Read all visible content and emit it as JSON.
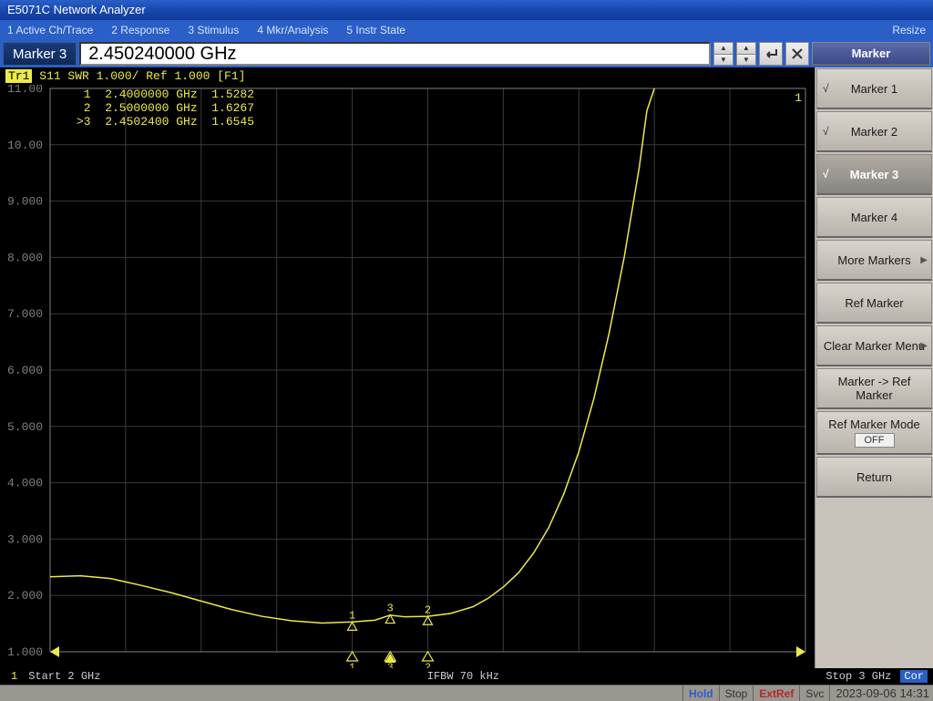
{
  "title": "E5071C Network Analyzer",
  "menu": {
    "items": [
      "1 Active Ch/Trace",
      "2 Response",
      "3 Stimulus",
      "4 Mkr/Analysis",
      "5 Instr State"
    ],
    "resize": "Resize"
  },
  "marker_bar": {
    "label": "Marker 3",
    "value": "2.450240000 GHz"
  },
  "plot": {
    "trace_label": "Tr1",
    "header": "S11 SWR 1.000/ Ref 1.000 [F1]",
    "ylim": [
      1.0,
      11.0
    ],
    "ytick_step": 1.0,
    "ytick_labels": [
      "11.00",
      "10.00",
      "9.000",
      "8.000",
      "7.000",
      "6.000",
      "5.000",
      "4.000",
      "3.000",
      "2.000",
      "1.000"
    ],
    "xlim": [
      2.0,
      3.0
    ],
    "grid_color": "#3a3a3a",
    "axis_color": "#808080",
    "label_color": "#808080",
    "trace_color": "#ecea4a",
    "background_color": "#000000",
    "marker_readout": [
      " 1  2.4000000 GHz  1.5282",
      " 2  2.5000000 GHz  1.6267",
      ">3  2.4502400 GHz  1.6545"
    ],
    "markers": [
      {
        "n": 1,
        "x": 2.4,
        "y": 1.5282
      },
      {
        "n": 2,
        "x": 2.5,
        "y": 1.6267
      },
      {
        "n": 3,
        "x": 2.45024,
        "y": 1.6545
      }
    ],
    "trace_points": [
      [
        2.0,
        2.33
      ],
      [
        2.04,
        2.35
      ],
      [
        2.08,
        2.3
      ],
      [
        2.12,
        2.18
      ],
      [
        2.16,
        2.05
      ],
      [
        2.2,
        1.9
      ],
      [
        2.24,
        1.75
      ],
      [
        2.28,
        1.63
      ],
      [
        2.32,
        1.55
      ],
      [
        2.36,
        1.51
      ],
      [
        2.4,
        1.53
      ],
      [
        2.43,
        1.56
      ],
      [
        2.45,
        1.65
      ],
      [
        2.47,
        1.62
      ],
      [
        2.5,
        1.63
      ],
      [
        2.53,
        1.68
      ],
      [
        2.56,
        1.8
      ],
      [
        2.58,
        1.95
      ],
      [
        2.6,
        2.15
      ],
      [
        2.62,
        2.4
      ],
      [
        2.64,
        2.75
      ],
      [
        2.66,
        3.2
      ],
      [
        2.68,
        3.8
      ],
      [
        2.7,
        4.55
      ],
      [
        2.72,
        5.5
      ],
      [
        2.74,
        6.65
      ],
      [
        2.76,
        8.0
      ],
      [
        2.78,
        9.6
      ],
      [
        2.79,
        10.6
      ],
      [
        2.8,
        12.0
      ]
    ]
  },
  "softkeys": {
    "title": "Marker",
    "items": [
      {
        "label": "Marker 1",
        "check": true
      },
      {
        "label": "Marker 2",
        "check": true
      },
      {
        "label": "Marker 3",
        "check": true,
        "active": true
      },
      {
        "label": "Marker 4"
      },
      {
        "label": "More Markers",
        "arrow": true
      },
      {
        "label": "Ref Marker"
      },
      {
        "label": "Clear Marker Menu",
        "arrow": true
      },
      {
        "label": "Marker -> Ref Marker"
      },
      {
        "label": "Ref Marker Mode",
        "sub": "OFF"
      },
      {
        "label": "Return"
      }
    ]
  },
  "info": {
    "ch": "1",
    "start": "Start 2 GHz",
    "ifbw": "IFBW 70 kHz",
    "stop": "Stop 3 GHz",
    "cor": "Cor"
  },
  "status": {
    "hold": "Hold",
    "stop": "Stop",
    "extref": "ExtRef",
    "svc": "Svc",
    "datetime": "2023-09-06 14:31"
  }
}
